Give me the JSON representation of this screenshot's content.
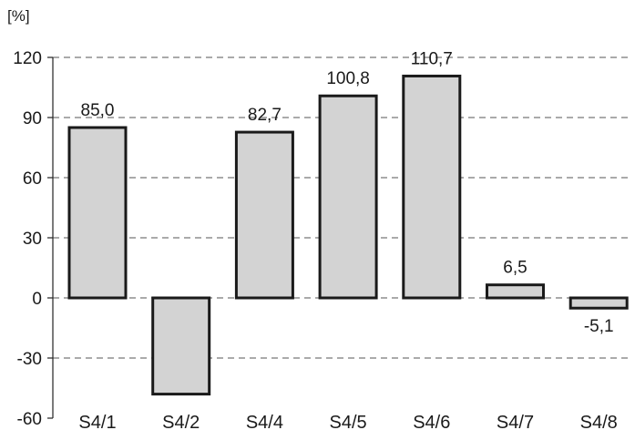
{
  "chart_data": {
    "type": "bar",
    "unit_label": "[%]",
    "categories": [
      "S4/1",
      "S4/2",
      "S4/4",
      "S4/5",
      "S4/6",
      "S4/7",
      "S4/8"
    ],
    "values": [
      85.0,
      -48.0,
      82.7,
      100.8,
      110.7,
      6.5,
      -5.1
    ],
    "data_labels": [
      "85,0",
      "",
      "82,7",
      "100,8",
      "110,7",
      "6,5",
      "-5,1"
    ],
    "y_ticks": [
      -60,
      -30,
      0,
      30,
      60,
      90,
      120
    ],
    "y_tick_labels": [
      "-60",
      "-30",
      "0",
      "30",
      "60",
      "90",
      "120"
    ],
    "ylim": [
      -60,
      120
    ],
    "grid": true,
    "bar_color": "#d3d3d3",
    "bar_edge_color": "#1a1a1a"
  }
}
